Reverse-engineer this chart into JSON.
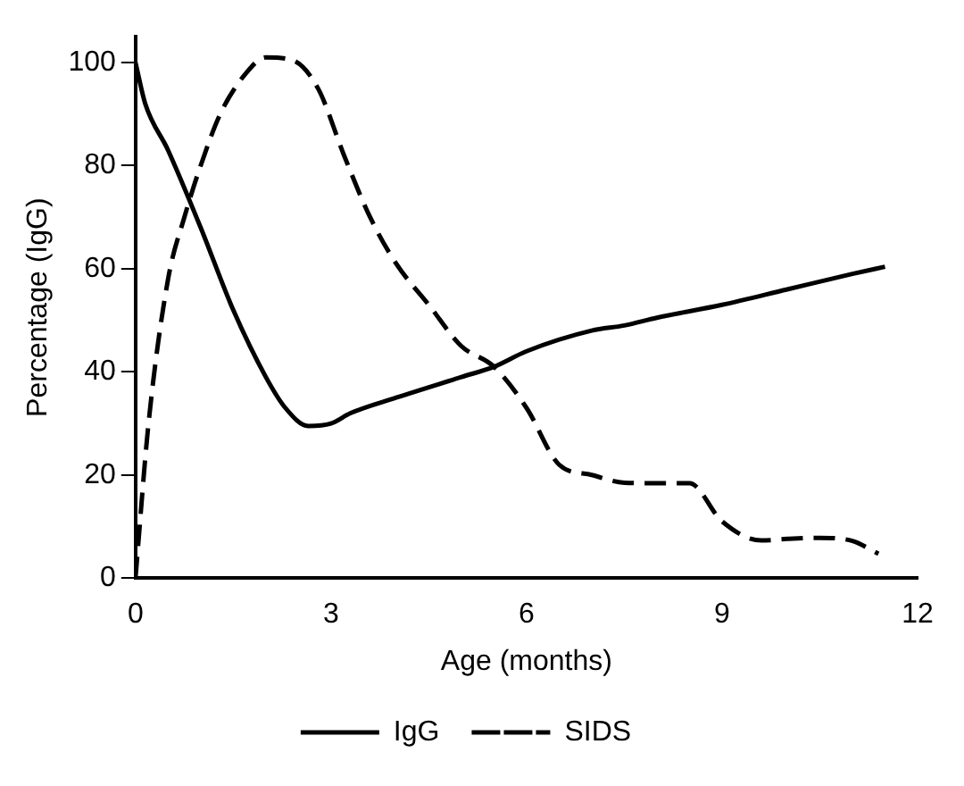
{
  "chart_data": {
    "type": "line",
    "xlabel": "Age (months)",
    "ylabel": "Percentage (IgG)",
    "xlim": [
      0,
      12
    ],
    "xticks": [
      0,
      3,
      6,
      9,
      12
    ],
    "ylim": [
      0,
      105
    ],
    "yticks": [
      0,
      20,
      40,
      60,
      80,
      100
    ],
    "grid": false,
    "legend": "bottom",
    "marker": "none",
    "series": [
      {
        "name": "IgG",
        "color": "#000000",
        "line_style": "solid",
        "x": [
          0,
          0.15,
          0.5,
          1,
          1.5,
          2,
          2.3,
          2.65,
          3,
          3.3,
          4,
          5,
          5.5,
          6,
          7,
          7.5,
          8,
          9,
          10,
          11,
          11.5
        ],
        "values": [
          100,
          92,
          83,
          68,
          52,
          39,
          33,
          29.5,
          30,
          32,
          35,
          39,
          41,
          44,
          48,
          49,
          50.5,
          53,
          56,
          59,
          60.4
        ]
      },
      {
        "name": "SIDS",
        "color": "#000000",
        "line_style": "dashed",
        "x": [
          0,
          0.2,
          0.5,
          0.75,
          1,
          1.3,
          1.7,
          2,
          2.4,
          2.8,
          3.2,
          3.6,
          4,
          4.5,
          5,
          5.5,
          6,
          6.5,
          7,
          7.5,
          8,
          8.5,
          9,
          9.6,
          10,
          10.5,
          11,
          11.4
        ],
        "values": [
          0,
          30,
          58,
          70,
          80,
          90,
          98,
          101,
          100.5,
          95,
          82,
          70,
          61,
          53,
          45,
          41,
          33,
          22,
          20,
          18.5,
          18.4,
          18.4,
          11,
          7.3,
          7.6,
          7.8,
          7.2,
          4.7
        ]
      }
    ]
  }
}
